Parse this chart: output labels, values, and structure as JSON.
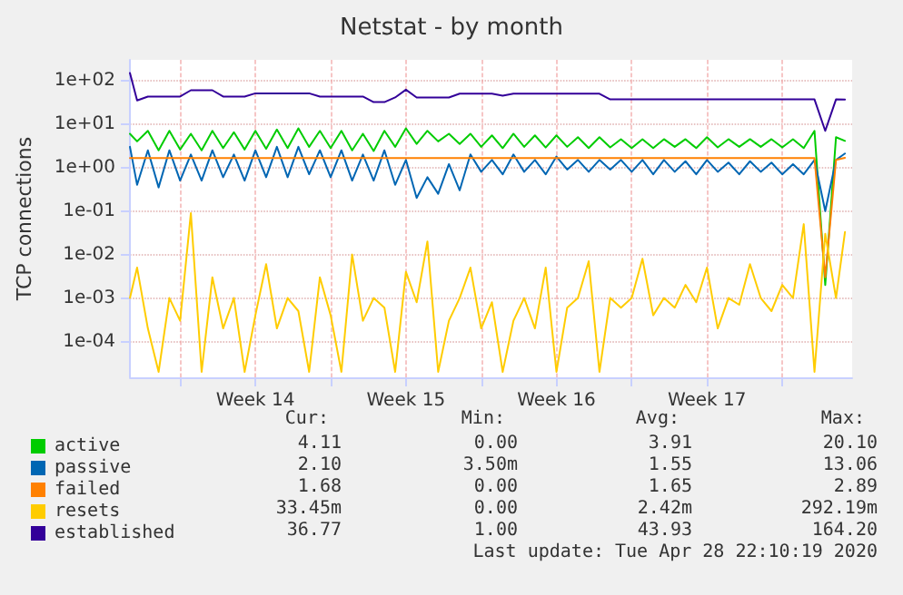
{
  "chart_data": {
    "type": "line",
    "title": "Netstat - by month",
    "ylabel": "TCP connections",
    "x": [
      "2020-03-26T16:00",
      "2020-03-27T00:00",
      "2020-03-27T12:00",
      "2020-03-28T00:00",
      "2020-03-28T12:00",
      "2020-03-29T00:00",
      "2020-03-29T12:00",
      "2020-03-30T00:00",
      "2020-03-30T12:00",
      "2020-03-31T00:00",
      "2020-03-31T12:00",
      "2020-04-01T00:00",
      "2020-04-01T12:00",
      "2020-04-02T00:00",
      "2020-04-02T12:00",
      "2020-04-03T00:00",
      "2020-04-03T12:00",
      "2020-04-04T00:00",
      "2020-04-04T12:00",
      "2020-04-05T00:00",
      "2020-04-05T12:00",
      "2020-04-06T00:00",
      "2020-04-06T12:00",
      "2020-04-07T00:00",
      "2020-04-07T12:00",
      "2020-04-08T00:00",
      "2020-04-08T12:00",
      "2020-04-09T00:00",
      "2020-04-09T12:00",
      "2020-04-10T00:00",
      "2020-04-10T12:00",
      "2020-04-11T00:00",
      "2020-04-11T12:00",
      "2020-04-12T00:00",
      "2020-04-12T12:00",
      "2020-04-13T00:00",
      "2020-04-13T12:00",
      "2020-04-14T00:00",
      "2020-04-14T12:00",
      "2020-04-15T00:00",
      "2020-04-15T12:00",
      "2020-04-16T00:00",
      "2020-04-16T12:00",
      "2020-04-17T00:00",
      "2020-04-17T12:00",
      "2020-04-18T00:00",
      "2020-04-18T12:00",
      "2020-04-19T00:00",
      "2020-04-19T12:00",
      "2020-04-20T00:00",
      "2020-04-20T12:00",
      "2020-04-21T00:00",
      "2020-04-21T12:00",
      "2020-04-22T00:00",
      "2020-04-22T12:00",
      "2020-04-23T00:00",
      "2020-04-23T12:00",
      "2020-04-24T00:00",
      "2020-04-24T12:00",
      "2020-04-25T00:00",
      "2020-04-25T12:00",
      "2020-04-26T00:00",
      "2020-04-26T12:00",
      "2020-04-27T00:00",
      "2020-04-27T12:00",
      "2020-04-28T00:00",
      "2020-04-28T12:00",
      "2020-04-28T22:00"
    ],
    "xlim": [
      "2020-03-26T16:00",
      "2020-04-29T06:00"
    ],
    "xticks": [
      {
        "value": "2020-03-29T00:00",
        "label": null
      },
      {
        "value": "2020-04-01T12:00",
        "label": "Week 14"
      },
      {
        "value": "2020-04-05T00:00",
        "label": null
      },
      {
        "value": "2020-04-08T12:00",
        "label": "Week 15"
      },
      {
        "value": "2020-04-12T00:00",
        "label": null
      },
      {
        "value": "2020-04-15T12:00",
        "label": "Week 16"
      },
      {
        "value": "2020-04-19T00:00",
        "label": null
      },
      {
        "value": "2020-04-22T12:00",
        "label": "Week 17"
      },
      {
        "value": "2020-04-26T00:00",
        "label": null
      }
    ],
    "ylim": [
      1.5e-05,
      300
    ],
    "log": "y",
    "yticks": [
      {
        "value": 0.0001,
        "label": "1e-04"
      },
      {
        "value": 0.001,
        "label": "1e-03"
      },
      {
        "value": 0.01,
        "label": "1e-02"
      },
      {
        "value": 0.1,
        "label": "1e-01"
      },
      {
        "value": 1,
        "label": "1e+00"
      },
      {
        "value": 10,
        "label": "1e+01"
      },
      {
        "value": 100,
        "label": "1e+02"
      }
    ],
    "grid": true,
    "legend": "bottom",
    "marker": "none",
    "line_style": "solid",
    "series": [
      {
        "name": "active",
        "color": "#00cc00",
        "values": [
          6,
          4,
          7,
          2.5,
          7,
          2.6,
          6,
          2.5,
          7,
          2.8,
          6.5,
          2.6,
          7,
          2.7,
          7.5,
          2.8,
          8,
          3,
          7,
          2.8,
          7,
          2.5,
          6,
          2.4,
          7,
          3,
          8,
          3.5,
          7,
          4,
          6,
          3.5,
          6,
          3,
          5.5,
          2.8,
          6,
          3,
          5.5,
          2.9,
          5.5,
          3,
          5,
          2.8,
          5,
          2.9,
          4.5,
          2.8,
          4.5,
          2.8,
          4.5,
          3,
          4.5,
          2.8,
          5,
          2.9,
          4.5,
          3,
          4.5,
          3,
          4.5,
          2.9,
          4.5,
          2.8,
          7,
          0.002,
          5,
          4.11
        ]
      },
      {
        "name": "passive",
        "color": "#0066b3",
        "values": [
          3,
          0.4,
          2.5,
          0.35,
          2.5,
          0.5,
          2,
          0.5,
          2.5,
          0.6,
          2,
          0.5,
          2.5,
          0.6,
          3,
          0.6,
          3,
          0.7,
          2.5,
          0.6,
          2.5,
          0.5,
          2,
          0.5,
          2.5,
          0.4,
          1.5,
          0.2,
          0.6,
          0.25,
          1.2,
          0.3,
          2,
          0.8,
          1.5,
          0.7,
          2,
          0.8,
          1.5,
          0.7,
          1.8,
          0.9,
          1.5,
          0.8,
          1.5,
          0.9,
          1.5,
          0.8,
          1.5,
          0.7,
          1.5,
          0.8,
          1.4,
          0.7,
          1.5,
          0.8,
          1.3,
          0.7,
          1.4,
          0.8,
          1.3,
          0.7,
          1.2,
          0.7,
          1.5,
          0.1,
          1.5,
          2.1
        ]
      },
      {
        "name": "failed",
        "color": "#ff8000",
        "values": [
          1.65,
          1.65,
          1.65,
          1.65,
          1.65,
          1.65,
          1.65,
          1.65,
          1.65,
          1.65,
          1.65,
          1.65,
          1.65,
          1.65,
          1.65,
          1.65,
          1.65,
          1.65,
          1.65,
          1.65,
          1.65,
          1.65,
          1.65,
          1.65,
          1.65,
          1.65,
          1.65,
          1.65,
          1.65,
          1.65,
          1.65,
          1.65,
          1.65,
          1.65,
          1.65,
          1.65,
          1.65,
          1.65,
          1.65,
          1.65,
          1.65,
          1.65,
          1.65,
          1.65,
          1.65,
          1.65,
          1.65,
          1.65,
          1.65,
          1.65,
          1.65,
          1.65,
          1.65,
          1.65,
          1.65,
          1.65,
          1.65,
          1.65,
          1.65,
          1.65,
          1.65,
          1.65,
          1.65,
          1.65,
          1.65,
          0.003,
          1.5,
          1.68
        ]
      },
      {
        "name": "resets",
        "color": "#ffcc00",
        "values": [
          0.001,
          0.005,
          0.0002,
          2e-05,
          0.001,
          0.0003,
          0.09,
          2e-05,
          0.003,
          0.0002,
          0.001,
          2e-05,
          0.0004,
          0.006,
          0.0002,
          0.001,
          0.0005,
          2e-05,
          0.003,
          0.0004,
          2e-05,
          0.01,
          0.0003,
          0.001,
          0.0006,
          2e-05,
          0.004,
          0.0008,
          0.02,
          2e-05,
          0.0003,
          0.001,
          0.005,
          0.0002,
          0.0008,
          2e-05,
          0.0003,
          0.001,
          0.0002,
          0.005,
          2e-05,
          0.0006,
          0.001,
          0.007,
          2e-05,
          0.001,
          0.0006,
          0.001,
          0.008,
          0.0004,
          0.001,
          0.0006,
          0.002,
          0.0008,
          0.005,
          0.0002,
          0.001,
          0.0007,
          0.006,
          0.001,
          0.0005,
          0.002,
          0.001,
          0.05,
          2e-05,
          0.03,
          0.001,
          0.033
        ]
      },
      {
        "name": "established",
        "color": "#330099",
        "values": [
          150,
          35,
          43,
          43,
          43,
          43,
          60,
          60,
          60,
          43,
          43,
          43,
          51,
          51,
          51,
          51,
          51,
          51,
          43,
          43,
          43,
          43,
          43,
          32,
          32,
          41,
          62,
          41,
          41,
          41,
          41,
          50,
          50,
          50,
          50,
          45,
          50,
          50,
          50,
          50,
          50,
          50,
          50,
          50,
          50,
          37,
          37,
          37,
          37,
          37,
          37,
          37,
          37,
          37,
          37,
          37,
          37,
          37,
          37,
          37,
          37,
          37,
          37,
          37,
          37,
          7,
          37,
          36.77
        ]
      }
    ],
    "annotations": [
      "Cur:",
      "Min:",
      "Avg:",
      "Max:",
      "4.11",
      "0.00",
      "3.91",
      "20.10",
      "2.10",
      "3.50m",
      "1.55",
      "13.06",
      "1.68",
      "0.00",
      "1.65",
      "2.89",
      "33.45m",
      "0.00",
      "2.42m",
      "292.19m",
      "36.77",
      "1.00",
      "43.93",
      "164.20",
      "Last update: Tue Apr 28 22:10:19 2020"
    ]
  }
}
